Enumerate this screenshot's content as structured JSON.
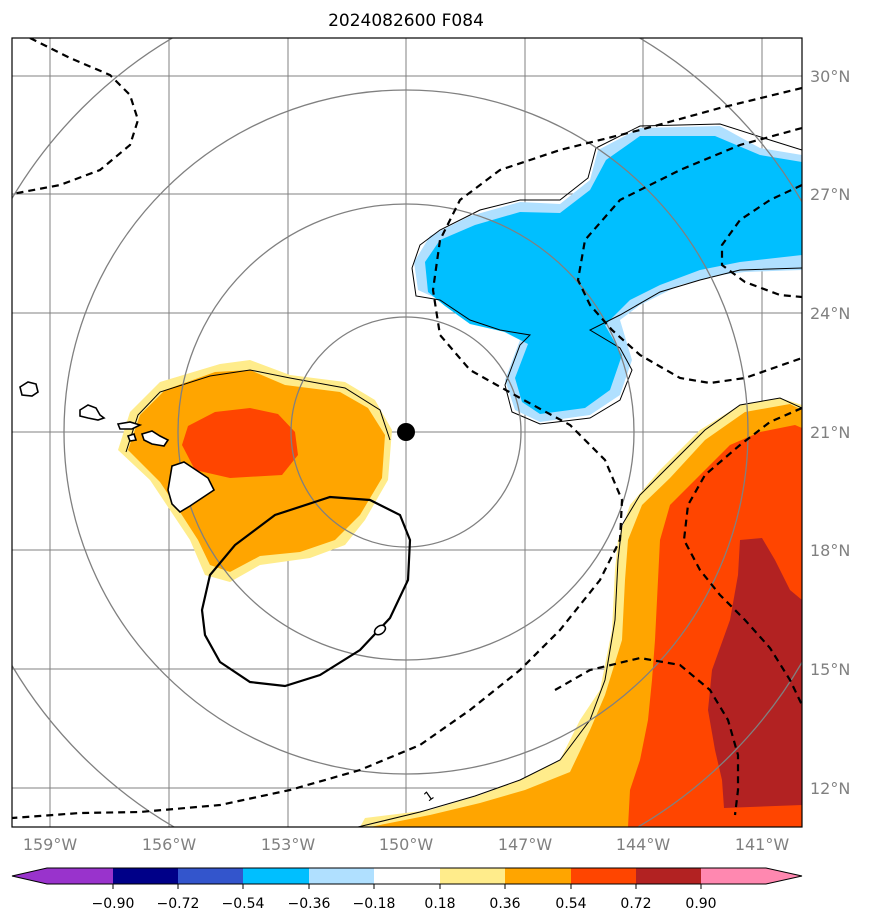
{
  "title": "2024082600 F084",
  "map": {
    "lat_labels": [
      "30°N",
      "27°N",
      "24°N",
      "21°N",
      "18°N",
      "15°N",
      "12°N"
    ],
    "lon_labels": [
      "159°W",
      "156°W",
      "153°W",
      "150°W",
      "147°W",
      "144°W",
      "141°W"
    ],
    "contour_label": "1",
    "center_marker": {
      "lon": -150.0,
      "lat": 21.0
    },
    "colors": {
      "grid": "#808080",
      "range_rings": "#808080",
      "coast": "#000000"
    }
  },
  "colorbar": {
    "ticks": [
      "−0.90",
      "−0.72",
      "−0.54",
      "−0.36",
      "−0.18",
      "0.18",
      "0.36",
      "0.54",
      "0.72",
      "0.90"
    ],
    "colors": [
      "#9933cc",
      "#000088",
      "#3355cc",
      "#00bfff",
      "#b0e0ff",
      "#ffffff",
      "#ffec8b",
      "#ffa500",
      "#ff4500",
      "#b22222",
      "#ff88b0"
    ]
  }
}
